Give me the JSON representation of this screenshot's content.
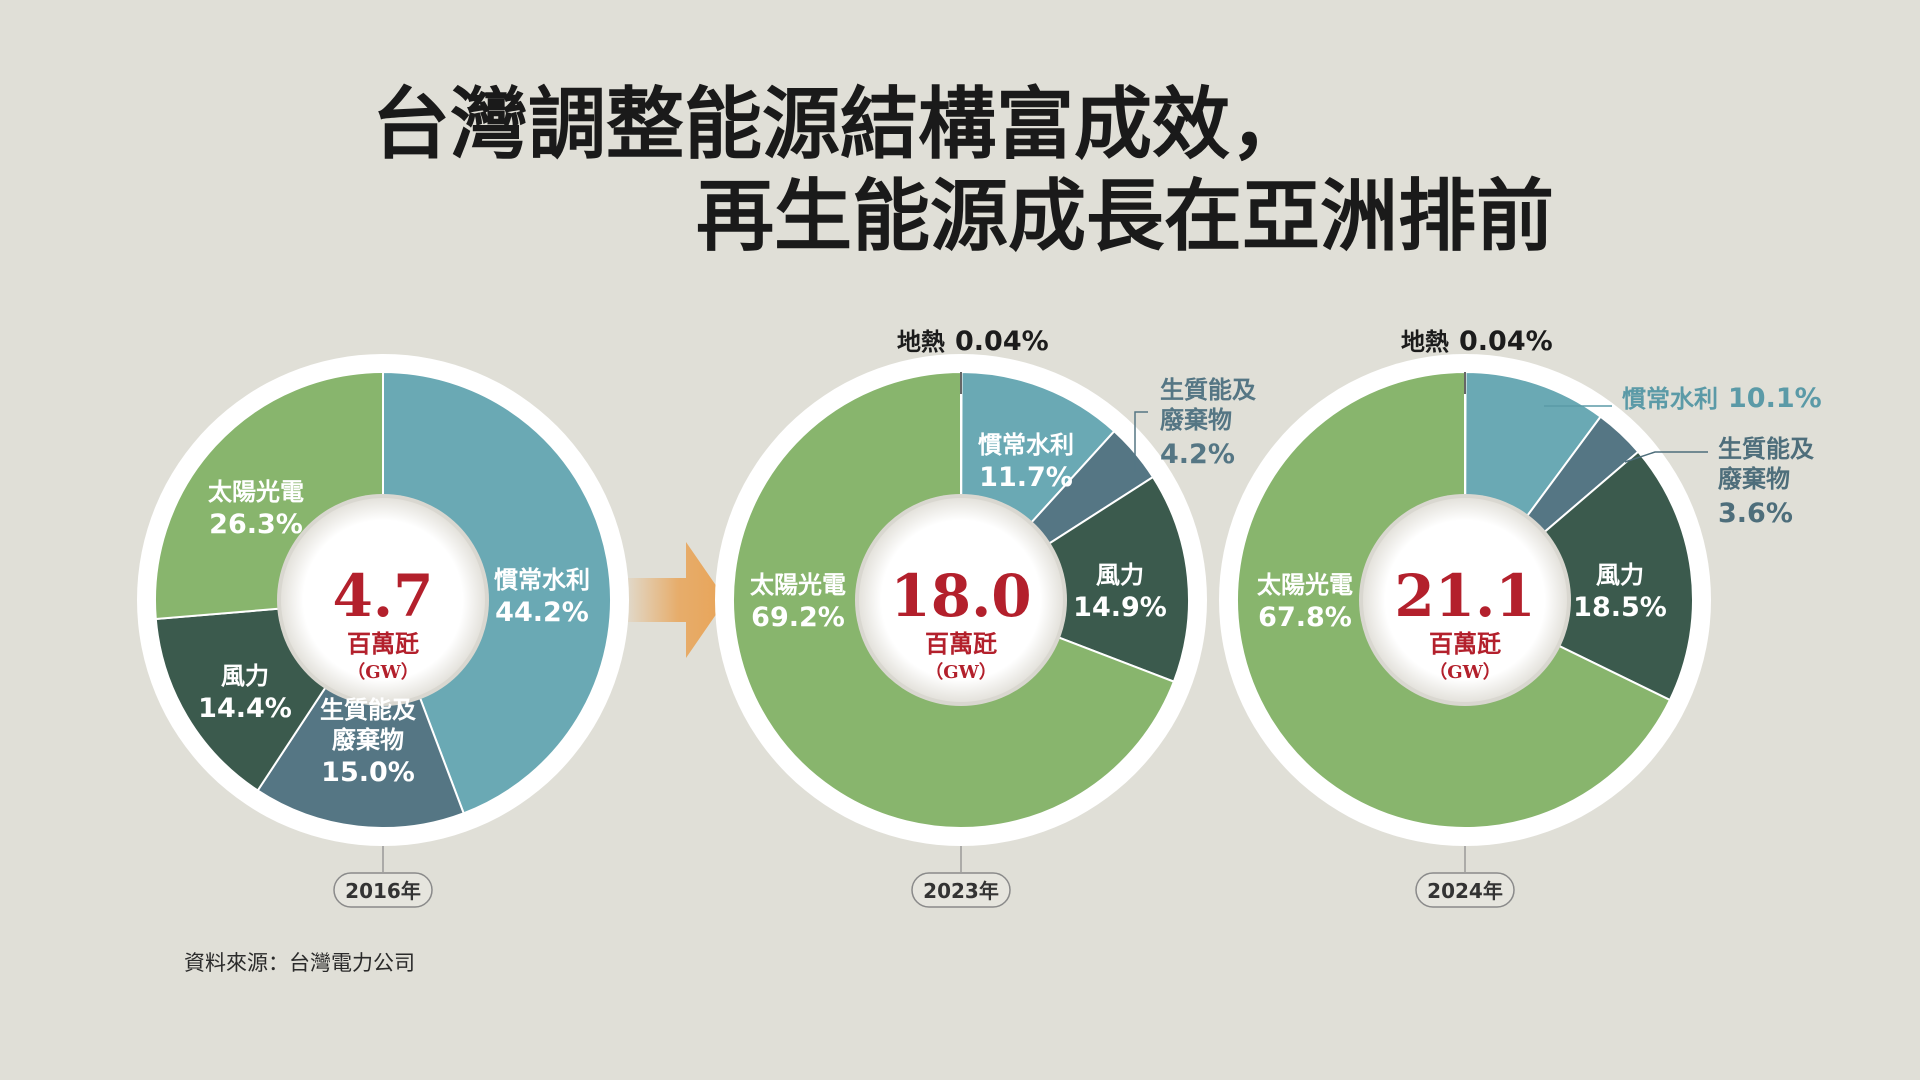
{
  "title_lines": [
    "台灣調整能源結構富成效，",
    "再生能源成長在亞洲排前"
  ],
  "source": "資料來源：台灣電力公司",
  "chart_data": [
    {
      "type": "pie",
      "year_label": "2016年",
      "total": "4.7",
      "unit": "百萬瓩",
      "unit_en": "（GW）",
      "slices": [
        {
          "name": "慣常水利",
          "value": 44.2,
          "label": "44.2%",
          "color": "#6aa9b4"
        },
        {
          "name": "生質能及廢棄物",
          "value": 15.0,
          "label": "15.0%",
          "color": "#557684"
        },
        {
          "name": "風力",
          "value": 14.4,
          "label": "14.4%",
          "color": "#3b5a4d"
        },
        {
          "name": "太陽光電",
          "value": 26.3,
          "label": "26.3%",
          "color": "#88b56d"
        }
      ]
    },
    {
      "type": "pie",
      "year_label": "2023年",
      "total": "18.0",
      "unit": "百萬瓩",
      "unit_en": "（GW）",
      "slices": [
        {
          "name": "地熱",
          "value": 0.04,
          "label": "0.04%",
          "color": "#4a4a4a"
        },
        {
          "name": "慣常水利",
          "value": 11.7,
          "label": "11.7%",
          "color": "#6aa9b4"
        },
        {
          "name": "生質能及廢棄物",
          "value": 4.2,
          "label": "4.2%",
          "color": "#557684"
        },
        {
          "name": "風力",
          "value": 14.9,
          "label": "14.9%",
          "color": "#3b5a4d"
        },
        {
          "name": "太陽光電",
          "value": 69.2,
          "label": "69.2%",
          "color": "#88b56d"
        }
      ]
    },
    {
      "type": "pie",
      "year_label": "2024年",
      "total": "21.1",
      "unit": "百萬瓩",
      "unit_en": "（GW）",
      "slices": [
        {
          "name": "地熱",
          "value": 0.04,
          "label": "0.04%",
          "color": "#4a4a4a"
        },
        {
          "name": "慣常水利",
          "value": 10.1,
          "label": "10.1%",
          "color": "#6aa9b4"
        },
        {
          "name": "生質能及廢棄物",
          "value": 3.6,
          "label": "3.6%",
          "color": "#557684"
        },
        {
          "name": "風力",
          "value": 18.5,
          "label": "18.5%",
          "color": "#3b5a4d"
        },
        {
          "name": "太陽光電",
          "value": 67.8,
          "label": "67.8%",
          "color": "#88b56d"
        }
      ]
    }
  ]
}
